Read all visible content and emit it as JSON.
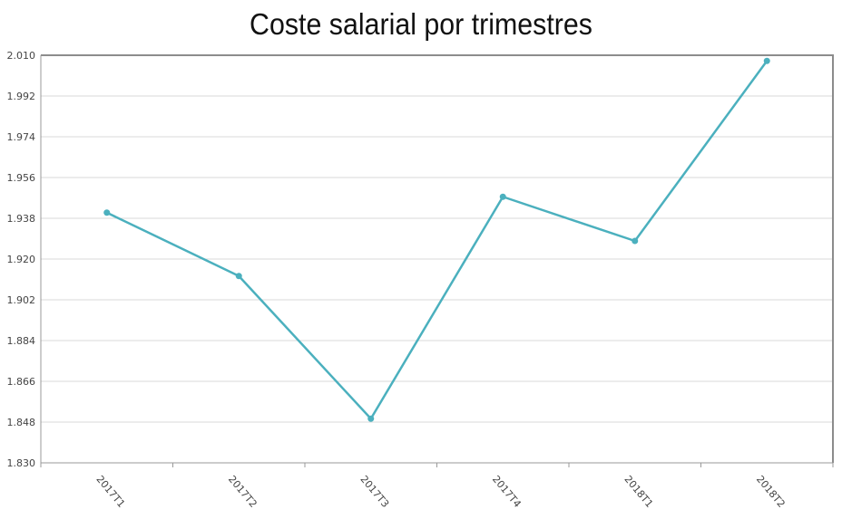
{
  "chart_data": {
    "type": "line",
    "title": "Coste salarial por trimestres",
    "xlabel": "",
    "ylabel": "",
    "categories": [
      "2017T1",
      "2017T2",
      "2017T3",
      "2017T4",
      "2018T1",
      "2018T2"
    ],
    "series": [
      {
        "values": [
          1.9405,
          1.9125,
          1.8495,
          1.9475,
          1.928,
          2.0075
        ]
      }
    ],
    "ylim": [
      1.83,
      2.01
    ],
    "yticks": [
      "1.830",
      "1.848",
      "1.866",
      "1.884",
      "1.902",
      "1.920",
      "1.938",
      "1.956",
      "1.974",
      "1.992",
      "2.010"
    ],
    "grid": true,
    "line_color": "#4bb0be"
  }
}
